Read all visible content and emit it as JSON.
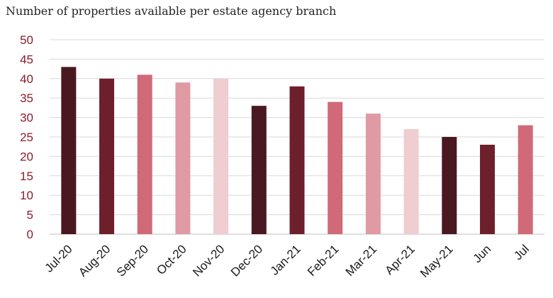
{
  "chart_data": {
    "type": "bar",
    "title": "Number of properties available per estate agency branch",
    "categories": [
      "Jul-20",
      "Aug-20",
      "Sep-20",
      "Oct-20",
      "Nov-20",
      "Dec-20",
      "Jan-21",
      "Feb-21",
      "Mar-21",
      "Apr-21",
      "May-21",
      "Jun",
      "Jul"
    ],
    "values": [
      43,
      40,
      41,
      39,
      40,
      33,
      38,
      34,
      31,
      27,
      25,
      23,
      28
    ],
    "bar_colors": [
      "#4a1820",
      "#6e1f2c",
      "#d06a78",
      "#e09aa3",
      "#efcdd1",
      "#4a1820",
      "#6e1f2c",
      "#d06a78",
      "#e09aa3",
      "#efcdd1",
      "#4a1820",
      "#6e1f2c",
      "#d06a78"
    ],
    "ylim": [
      0,
      50
    ],
    "yticks": [
      0,
      5,
      10,
      15,
      20,
      25,
      30,
      35,
      40,
      45,
      50
    ],
    "xlabel": "",
    "ylabel": "",
    "grid": true,
    "legend": "none",
    "colors": {
      "tick_label": "#8a1c2b",
      "gridline": "#d9d9d9"
    }
  }
}
